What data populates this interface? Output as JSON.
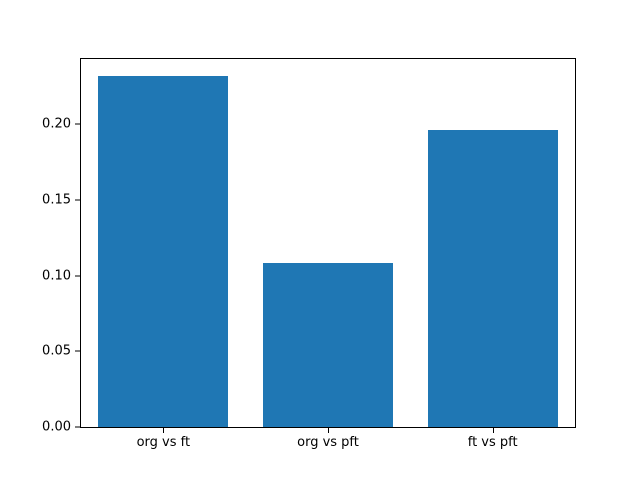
{
  "chart_data": {
    "type": "bar",
    "title": "",
    "xlabel": "",
    "ylabel": "",
    "categories": [
      "org vs ft",
      "org vs pft",
      "ft vs pft"
    ],
    "values": [
      0.232,
      0.108,
      0.196
    ],
    "bar_color": "#1f77b4",
    "axis_color": "#000000",
    "background_color": "#ffffff",
    "ylim": [
      0,
      0.243
    ],
    "ytick_labels": [
      "0.00",
      "0.05",
      "0.10",
      "0.15",
      "0.20"
    ],
    "ytick_values": [
      0.0,
      0.05,
      0.1,
      0.15,
      0.2
    ],
    "grid": false,
    "legend": null
  }
}
